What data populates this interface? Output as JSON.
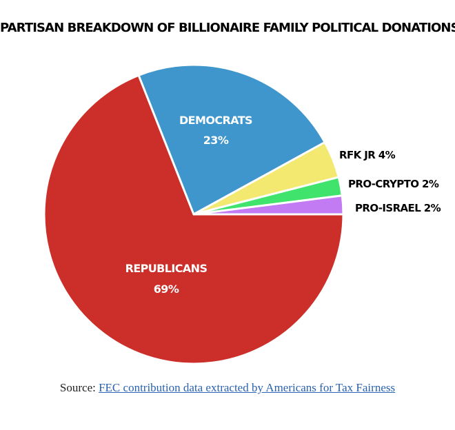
{
  "chart_data": {
    "type": "pie",
    "title": "PARTISAN BREAKDOWN OF BILLIONAIRE FAMILY POLITICAL DONATIONS",
    "slices": [
      {
        "name": "REPUBLICANS",
        "value": 69,
        "label": "69%",
        "color": "#cc2f2a"
      },
      {
        "name": "DEMOCRATS",
        "value": 23,
        "label": "23%",
        "color": "#3e96cc"
      },
      {
        "name": "RFK JR",
        "value": 4,
        "label": "RFK JR 4%",
        "color": "#f3e870"
      },
      {
        "name": "PRO-CRYPTO",
        "value": 2,
        "label": "PRO-CRYPTO 2%",
        "color": "#40e36c"
      },
      {
        "name": "PRO-ISRAEL",
        "value": 2,
        "label": "PRO-ISRAEL 2%",
        "color": "#c27bf2"
      }
    ]
  },
  "source": {
    "prefix": "Source:",
    "link_text": "FEC contribution data extracted by Americans for Tax Fairness"
  }
}
